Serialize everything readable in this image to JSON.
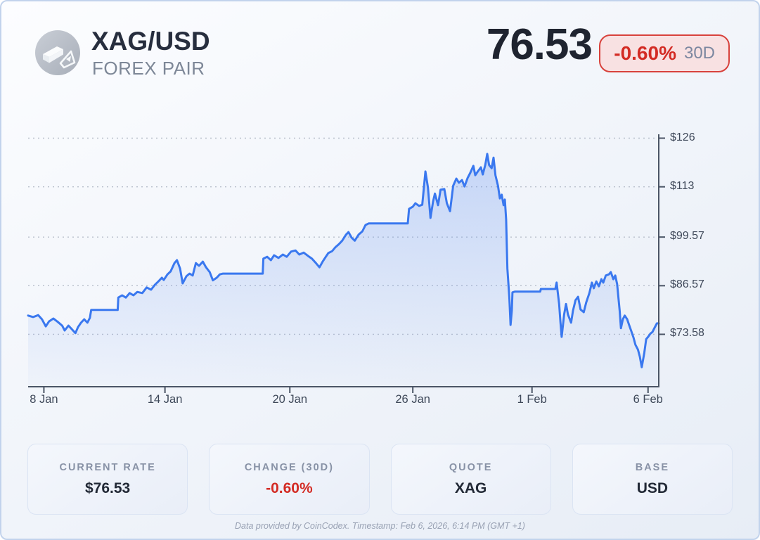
{
  "header": {
    "title": "XAG/USD",
    "subtitle": "FOREX PAIR",
    "icon": "silver-bars-icon"
  },
  "quote": {
    "price": "76.53",
    "change_pct": "-0.60%",
    "period": "30D"
  },
  "chart_data": {
    "type": "area",
    "series_name": "XAG/USD rate (USD), 30 days",
    "grid": "dotted-horizontal",
    "legend": "none",
    "line_color": "#3a78ef",
    "area_color": "#5b8bee",
    "ylim": [
      59.6,
      126
    ],
    "y_ticks": [
      {
        "label": "$126",
        "price": 126
      },
      {
        "label": "$113",
        "price": 113
      },
      {
        "label": "$99.57",
        "price": 99.57
      },
      {
        "label": "$86.57",
        "price": 86.57
      },
      {
        "label": "$73.58",
        "price": 73.58
      }
    ],
    "x_ticks": [
      {
        "label": "8 Jan",
        "t": 0.025
      },
      {
        "label": "14 Jan",
        "t": 0.217
      },
      {
        "label": "20 Jan",
        "t": 0.415
      },
      {
        "label": "26 Jan",
        "t": 0.61
      },
      {
        "label": "1 Feb",
        "t": 0.799
      },
      {
        "label": "6 Feb",
        "t": 0.983
      }
    ],
    "daily_approx": {
      "dates": [
        "8 Jan",
        "9 Jan",
        "10 Jan",
        "11 Jan",
        "12 Jan",
        "13 Jan",
        "14 Jan",
        "15 Jan",
        "16 Jan",
        "17 Jan",
        "18 Jan",
        "19 Jan",
        "20 Jan",
        "21 Jan",
        "22 Jan",
        "23 Jan",
        "24 Jan",
        "25 Jan",
        "26 Jan",
        "27 Jan",
        "28 Jan",
        "29 Jan",
        "30 Jan",
        "31 Jan",
        "1 Feb",
        "2 Feb",
        "3 Feb",
        "4 Feb",
        "5 Feb",
        "6 Feb"
      ],
      "values": [
        77.6,
        74.6,
        76.7,
        80.1,
        84.0,
        86.0,
        88.6,
        92.0,
        90.0,
        89.8,
        89.8,
        94.0,
        95.0,
        93.5,
        96.5,
        100.5,
        103.2,
        103.2,
        108.0,
        112.0,
        107.0,
        117.0,
        120.0,
        85.0,
        85.0,
        85.7,
        79.0,
        86.5,
        89.0,
        76.53
      ],
      "period_high": 121.8,
      "period_low": 64.8
    },
    "points": [
      [
        0,
        78.6
      ],
      [
        0.008,
        78.2
      ],
      [
        0.016,
        78.7
      ],
      [
        0.022,
        77.6
      ],
      [
        0.028,
        75.7
      ],
      [
        0.033,
        77
      ],
      [
        0.04,
        77.8
      ],
      [
        0.047,
        76.9
      ],
      [
        0.054,
        75.9
      ],
      [
        0.058,
        74.6
      ],
      [
        0.064,
        75.9
      ],
      [
        0.069,
        75
      ],
      [
        0.075,
        73.9
      ],
      [
        0.079,
        75.5
      ],
      [
        0.084,
        76.7
      ],
      [
        0.089,
        77.6
      ],
      [
        0.094,
        76.7
      ],
      [
        0.098,
        78
      ],
      [
        0.1,
        80.1
      ],
      [
        0.142,
        80.1
      ],
      [
        0.143,
        83.4
      ],
      [
        0.149,
        84
      ],
      [
        0.155,
        83.4
      ],
      [
        0.161,
        84.6
      ],
      [
        0.167,
        84
      ],
      [
        0.173,
        84.9
      ],
      [
        0.181,
        84.6
      ],
      [
        0.188,
        86.1
      ],
      [
        0.195,
        85.5
      ],
      [
        0.201,
        86.8
      ],
      [
        0.207,
        87.8
      ],
      [
        0.212,
        88.7
      ],
      [
        0.215,
        88.1
      ],
      [
        0.221,
        89.6
      ],
      [
        0.226,
        90.4
      ],
      [
        0.232,
        92.6
      ],
      [
        0.236,
        93.4
      ],
      [
        0.241,
        91.1
      ],
      [
        0.245,
        87.2
      ],
      [
        0.251,
        89.1
      ],
      [
        0.256,
        89.8
      ],
      [
        0.261,
        89.3
      ],
      [
        0.266,
        92.6
      ],
      [
        0.271,
        91.9
      ],
      [
        0.277,
        93
      ],
      [
        0.282,
        91.5
      ],
      [
        0.288,
        90.2
      ],
      [
        0.293,
        88
      ],
      [
        0.299,
        88.7
      ],
      [
        0.304,
        89.6
      ],
      [
        0.309,
        89.8
      ],
      [
        0.372,
        89.8
      ],
      [
        0.373,
        93.8
      ],
      [
        0.379,
        94.3
      ],
      [
        0.385,
        93.4
      ],
      [
        0.39,
        94.7
      ],
      [
        0.397,
        94
      ],
      [
        0.404,
        94.9
      ],
      [
        0.41,
        94.3
      ],
      [
        0.417,
        95.7
      ],
      [
        0.424,
        96
      ],
      [
        0.43,
        94.9
      ],
      [
        0.437,
        95.4
      ],
      [
        0.444,
        94.5
      ],
      [
        0.45,
        93.8
      ],
      [
        0.457,
        92.5
      ],
      [
        0.462,
        91.5
      ],
      [
        0.467,
        93
      ],
      [
        0.472,
        94.3
      ],
      [
        0.476,
        95.3
      ],
      [
        0.482,
        95.8
      ],
      [
        0.487,
        96.8
      ],
      [
        0.493,
        97.7
      ],
      [
        0.498,
        98.6
      ],
      [
        0.504,
        100.2
      ],
      [
        0.508,
        100.9
      ],
      [
        0.513,
        99.4
      ],
      [
        0.518,
        98.6
      ],
      [
        0.524,
        100.2
      ],
      [
        0.53,
        101.1
      ],
      [
        0.535,
        102.8
      ],
      [
        0.54,
        103.2
      ],
      [
        0.602,
        103.2
      ],
      [
        0.604,
        107.1
      ],
      [
        0.61,
        107.7
      ],
      [
        0.614,
        108.6
      ],
      [
        0.62,
        107.9
      ],
      [
        0.625,
        108.2
      ],
      [
        0.63,
        117.1
      ],
      [
        0.634,
        112.8
      ],
      [
        0.638,
        104.7
      ],
      [
        0.642,
        109
      ],
      [
        0.645,
        111.2
      ],
      [
        0.65,
        108.1
      ],
      [
        0.654,
        112.2
      ],
      [
        0.66,
        112.4
      ],
      [
        0.664,
        108.6
      ],
      [
        0.669,
        106.5
      ],
      [
        0.674,
        113.3
      ],
      [
        0.679,
        115.2
      ],
      [
        0.683,
        114.1
      ],
      [
        0.688,
        114.8
      ],
      [
        0.692,
        113.1
      ],
      [
        0.697,
        115.4
      ],
      [
        0.701,
        116.7
      ],
      [
        0.706,
        118.6
      ],
      [
        0.709,
        116.1
      ],
      [
        0.713,
        117.1
      ],
      [
        0.718,
        118.2
      ],
      [
        0.721,
        116.3
      ],
      [
        0.725,
        118.9
      ],
      [
        0.728,
        121.8
      ],
      [
        0.731,
        118.8
      ],
      [
        0.735,
        118
      ],
      [
        0.738,
        120.8
      ],
      [
        0.741,
        116.1
      ],
      [
        0.745,
        113.3
      ],
      [
        0.748,
        109.9
      ],
      [
        0.751,
        110.9
      ],
      [
        0.754,
        108.1
      ],
      [
        0.756,
        109.6
      ],
      [
        0.758,
        104.3
      ],
      [
        0.76,
        91.1
      ],
      [
        0.763,
        83.6
      ],
      [
        0.765,
        76.1
      ],
      [
        0.767,
        79.9
      ],
      [
        0.768,
        84.8
      ],
      [
        0.772,
        85
      ],
      [
        0.812,
        85
      ],
      [
        0.813,
        85.7
      ],
      [
        0.836,
        85.7
      ],
      [
        0.838,
        87.4
      ],
      [
        0.842,
        81.7
      ],
      [
        0.844,
        77
      ],
      [
        0.846,
        72.9
      ],
      [
        0.85,
        78.9
      ],
      [
        0.853,
        81.7
      ],
      [
        0.856,
        78.9
      ],
      [
        0.861,
        76.7
      ],
      [
        0.864,
        79.9
      ],
      [
        0.868,
        82.7
      ],
      [
        0.872,
        83.6
      ],
      [
        0.876,
        80.2
      ],
      [
        0.881,
        79.5
      ],
      [
        0.885,
        82.1
      ],
      [
        0.89,
        84.6
      ],
      [
        0.894,
        87.4
      ],
      [
        0.897,
        85.9
      ],
      [
        0.901,
        87.7
      ],
      [
        0.905,
        86.4
      ],
      [
        0.909,
        88.3
      ],
      [
        0.912,
        87.4
      ],
      [
        0.916,
        89.3
      ],
      [
        0.921,
        89.6
      ],
      [
        0.924,
        90.2
      ],
      [
        0.928,
        88.3
      ],
      [
        0.931,
        89.3
      ],
      [
        0.934,
        87
      ],
      [
        0.938,
        79.9
      ],
      [
        0.94,
        75.2
      ],
      [
        0.943,
        77.6
      ],
      [
        0.946,
        78.6
      ],
      [
        0.95,
        77.6
      ],
      [
        0.953,
        76.1
      ],
      [
        0.957,
        74.2
      ],
      [
        0.96,
        72.7
      ],
      [
        0.963,
        70.8
      ],
      [
        0.967,
        69.5
      ],
      [
        0.97,
        67.6
      ],
      [
        0.973,
        64.8
      ],
      [
        0.977,
        68.6
      ],
      [
        0.98,
        72.3
      ],
      [
        0.983,
        72.9
      ],
      [
        0.987,
        73.8
      ],
      [
        0.99,
        74.2
      ],
      [
        0.993,
        75.2
      ],
      [
        0.997,
        76.5
      ],
      [
        1,
        76.5
      ]
    ]
  },
  "stats": {
    "cards": [
      {
        "label": "CURRENT RATE",
        "value": "$76.53",
        "accent": "dark"
      },
      {
        "label": "CHANGE (30D)",
        "value": "-0.60%",
        "accent": "red"
      },
      {
        "label": "QUOTE",
        "value": "XAG",
        "accent": "dark"
      },
      {
        "label": "BASE",
        "value": "USD",
        "accent": "dark"
      }
    ]
  },
  "footer": {
    "text": "Data provided by CoinCodex. Timestamp: Feb 6, 2026, 6:14 PM (GMT +1)"
  },
  "colors": {
    "accent_blue": "#3a78ef",
    "negative_red": "#d32b24",
    "badge_bg": "#f8e1e2",
    "card_border": "#c2d3ec",
    "axis": "#4b5566",
    "gridline": "#b8bfcb"
  }
}
